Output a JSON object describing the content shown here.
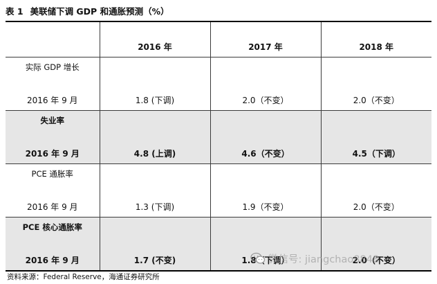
{
  "title": {
    "label": "表 1",
    "text": "美联储下调 GDP 和通胀预测（%）"
  },
  "table": {
    "headers": [
      "",
      "2016 年",
      "2017 年",
      "2018 年"
    ],
    "rows": [
      {
        "metric": "实际 GDP 增长",
        "date": "2016 年 9 月",
        "values": [
          "1.8 (下调)",
          "2.0（不变）",
          "2.0（不变）"
        ],
        "shaded": false
      },
      {
        "metric": "失业率",
        "date": "2016 年 9 月",
        "values": [
          "4.8 (上调)",
          "4.6（不变）",
          "4.5（下调）"
        ],
        "shaded": true
      },
      {
        "metric": "PCE 通胀率",
        "date": "2016 年 9 月",
        "values": [
          "1.3 (下调)",
          "1.9（不变）",
          "2.0（不变）"
        ],
        "shaded": false
      },
      {
        "metric": "PCE 核心通胀率",
        "date": "2016 年 9 月",
        "values": [
          "1.7 (不变)",
          "1.8（下调）",
          "2.0（不变）"
        ],
        "shaded": true
      }
    ]
  },
  "source": "资料来源：Federal Reserve，海通证券研究所",
  "watermark": {
    "text": "微信号: jiangchao8848",
    "icon": "wechat-icon"
  },
  "colors": {
    "shade": "#e6e6e6",
    "border": "#3a3a3a",
    "watermark": "#969696"
  }
}
